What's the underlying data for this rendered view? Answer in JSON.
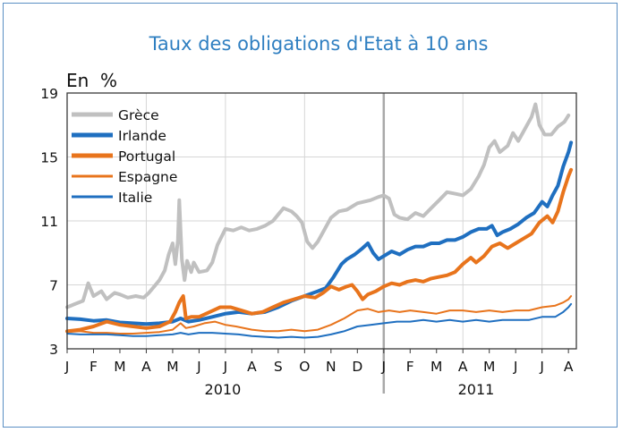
{
  "chart_data": {
    "type": "line",
    "title": "Taux des obligations d'Etat à 10 ans",
    "ylabel": "En  %",
    "ylim": [
      3,
      19
    ],
    "yticks": [
      3,
      7,
      11,
      15,
      19
    ],
    "x_month_labels": [
      "J",
      "F",
      "M",
      "A",
      "M",
      "J",
      "J",
      "A",
      "S",
      "O",
      "N",
      "D",
      "J",
      "F",
      "M",
      "A",
      "M",
      "J",
      "J",
      "A"
    ],
    "years": [
      "2010",
      "2011"
    ],
    "x_range_months": [
      0,
      19.3
    ],
    "year_divider_month": 12,
    "grid": true,
    "legend_position": "top-left",
    "series": [
      {
        "name": "Grèce",
        "color": "#c0c0c0",
        "width": 4,
        "points": [
          [
            0,
            5.6
          ],
          [
            0.3,
            5.8
          ],
          [
            0.6,
            6.0
          ],
          [
            0.8,
            7.1
          ],
          [
            1.0,
            6.3
          ],
          [
            1.3,
            6.6
          ],
          [
            1.5,
            6.1
          ],
          [
            1.8,
            6.5
          ],
          [
            2.0,
            6.4
          ],
          [
            2.3,
            6.2
          ],
          [
            2.6,
            6.3
          ],
          [
            2.9,
            6.2
          ],
          [
            3.1,
            6.5
          ],
          [
            3.3,
            6.9
          ],
          [
            3.5,
            7.3
          ],
          [
            3.7,
            7.9
          ],
          [
            3.85,
            8.9
          ],
          [
            4.0,
            9.6
          ],
          [
            4.1,
            8.3
          ],
          [
            4.2,
            9.8
          ],
          [
            4.25,
            12.3
          ],
          [
            4.35,
            8.6
          ],
          [
            4.45,
            7.3
          ],
          [
            4.55,
            8.5
          ],
          [
            4.7,
            7.8
          ],
          [
            4.8,
            8.4
          ],
          [
            5.0,
            7.8
          ],
          [
            5.3,
            7.9
          ],
          [
            5.5,
            8.4
          ],
          [
            5.7,
            9.5
          ],
          [
            6.0,
            10.5
          ],
          [
            6.3,
            10.4
          ],
          [
            6.6,
            10.6
          ],
          [
            6.9,
            10.4
          ],
          [
            7.2,
            10.5
          ],
          [
            7.5,
            10.7
          ],
          [
            7.8,
            11.0
          ],
          [
            8.0,
            11.4
          ],
          [
            8.2,
            11.8
          ],
          [
            8.5,
            11.6
          ],
          [
            8.7,
            11.3
          ],
          [
            8.9,
            10.9
          ],
          [
            9.1,
            9.7
          ],
          [
            9.3,
            9.3
          ],
          [
            9.5,
            9.7
          ],
          [
            9.7,
            10.3
          ],
          [
            10.0,
            11.2
          ],
          [
            10.3,
            11.6
          ],
          [
            10.6,
            11.7
          ],
          [
            11.0,
            12.1
          ],
          [
            11.5,
            12.3
          ],
          [
            11.8,
            12.5
          ],
          [
            12.0,
            12.6
          ],
          [
            12.2,
            12.4
          ],
          [
            12.4,
            11.4
          ],
          [
            12.6,
            11.2
          ],
          [
            12.9,
            11.1
          ],
          [
            13.2,
            11.5
          ],
          [
            13.5,
            11.3
          ],
          [
            13.8,
            11.8
          ],
          [
            14.1,
            12.3
          ],
          [
            14.4,
            12.8
          ],
          [
            14.7,
            12.7
          ],
          [
            15.0,
            12.6
          ],
          [
            15.3,
            13.0
          ],
          [
            15.6,
            13.8
          ],
          [
            15.8,
            14.5
          ],
          [
            16.0,
            15.6
          ],
          [
            16.2,
            16.0
          ],
          [
            16.4,
            15.3
          ],
          [
            16.7,
            15.7
          ],
          [
            16.9,
            16.5
          ],
          [
            17.1,
            16.0
          ],
          [
            17.4,
            16.9
          ],
          [
            17.6,
            17.5
          ],
          [
            17.75,
            18.3
          ],
          [
            17.9,
            17.0
          ],
          [
            18.1,
            16.4
          ],
          [
            18.35,
            16.4
          ],
          [
            18.6,
            16.9
          ],
          [
            18.85,
            17.2
          ],
          [
            19.0,
            17.6
          ]
        ]
      },
      {
        "name": "Irlande",
        "color": "#1f6fc0",
        "width": 4,
        "points": [
          [
            0,
            4.9
          ],
          [
            0.5,
            4.85
          ],
          [
            1.0,
            4.75
          ],
          [
            1.5,
            4.8
          ],
          [
            2.0,
            4.65
          ],
          [
            2.5,
            4.6
          ],
          [
            3.0,
            4.55
          ],
          [
            3.5,
            4.6
          ],
          [
            4.0,
            4.7
          ],
          [
            4.3,
            4.9
          ],
          [
            4.6,
            4.7
          ],
          [
            5.0,
            4.8
          ],
          [
            5.5,
            5.0
          ],
          [
            6.0,
            5.2
          ],
          [
            6.5,
            5.3
          ],
          [
            7.0,
            5.2
          ],
          [
            7.5,
            5.3
          ],
          [
            8.0,
            5.6
          ],
          [
            8.5,
            6.0
          ],
          [
            9.0,
            6.3
          ],
          [
            9.5,
            6.6
          ],
          [
            9.8,
            6.8
          ],
          [
            10.1,
            7.5
          ],
          [
            10.4,
            8.3
          ],
          [
            10.6,
            8.6
          ],
          [
            10.9,
            8.9
          ],
          [
            11.2,
            9.3
          ],
          [
            11.4,
            9.6
          ],
          [
            11.6,
            9.0
          ],
          [
            11.8,
            8.6
          ],
          [
            12.0,
            8.8
          ],
          [
            12.3,
            9.1
          ],
          [
            12.6,
            8.9
          ],
          [
            12.9,
            9.2
          ],
          [
            13.2,
            9.4
          ],
          [
            13.5,
            9.4
          ],
          [
            13.8,
            9.6
          ],
          [
            14.1,
            9.6
          ],
          [
            14.4,
            9.8
          ],
          [
            14.7,
            9.8
          ],
          [
            15.0,
            10.0
          ],
          [
            15.3,
            10.3
          ],
          [
            15.6,
            10.5
          ],
          [
            15.9,
            10.5
          ],
          [
            16.1,
            10.7
          ],
          [
            16.3,
            10.1
          ],
          [
            16.5,
            10.3
          ],
          [
            16.8,
            10.5
          ],
          [
            17.1,
            10.8
          ],
          [
            17.4,
            11.2
          ],
          [
            17.7,
            11.5
          ],
          [
            18.0,
            12.2
          ],
          [
            18.2,
            11.9
          ],
          [
            18.4,
            12.6
          ],
          [
            18.6,
            13.2
          ],
          [
            18.8,
            14.4
          ],
          [
            19.0,
            15.3
          ],
          [
            19.1,
            15.9
          ]
        ]
      },
      {
        "name": "Portugal",
        "color": "#e8741c",
        "width": 4,
        "points": [
          [
            0,
            4.1
          ],
          [
            0.5,
            4.2
          ],
          [
            1.0,
            4.4
          ],
          [
            1.5,
            4.7
          ],
          [
            2.0,
            4.5
          ],
          [
            2.5,
            4.4
          ],
          [
            3.0,
            4.3
          ],
          [
            3.5,
            4.4
          ],
          [
            3.9,
            4.7
          ],
          [
            4.1,
            5.3
          ],
          [
            4.25,
            5.9
          ],
          [
            4.4,
            6.3
          ],
          [
            4.5,
            4.9
          ],
          [
            4.7,
            5.0
          ],
          [
            5.0,
            5.0
          ],
          [
            5.4,
            5.3
          ],
          [
            5.8,
            5.6
          ],
          [
            6.2,
            5.6
          ],
          [
            6.6,
            5.4
          ],
          [
            7.0,
            5.2
          ],
          [
            7.4,
            5.3
          ],
          [
            7.8,
            5.6
          ],
          [
            8.2,
            5.9
          ],
          [
            8.6,
            6.1
          ],
          [
            9.0,
            6.3
          ],
          [
            9.4,
            6.2
          ],
          [
            9.7,
            6.5
          ],
          [
            10.0,
            6.9
          ],
          [
            10.3,
            6.7
          ],
          [
            10.6,
            6.9
          ],
          [
            10.8,
            7.0
          ],
          [
            11.0,
            6.6
          ],
          [
            11.2,
            6.1
          ],
          [
            11.4,
            6.4
          ],
          [
            11.7,
            6.6
          ],
          [
            12.0,
            6.9
          ],
          [
            12.3,
            7.1
          ],
          [
            12.6,
            7.0
          ],
          [
            12.9,
            7.2
          ],
          [
            13.2,
            7.3
          ],
          [
            13.5,
            7.2
          ],
          [
            13.8,
            7.4
          ],
          [
            14.1,
            7.5
          ],
          [
            14.4,
            7.6
          ],
          [
            14.7,
            7.8
          ],
          [
            15.0,
            8.3
          ],
          [
            15.3,
            8.7
          ],
          [
            15.5,
            8.4
          ],
          [
            15.8,
            8.8
          ],
          [
            16.1,
            9.4
          ],
          [
            16.4,
            9.6
          ],
          [
            16.7,
            9.3
          ],
          [
            17.0,
            9.6
          ],
          [
            17.3,
            9.9
          ],
          [
            17.6,
            10.2
          ],
          [
            17.9,
            10.9
          ],
          [
            18.2,
            11.3
          ],
          [
            18.4,
            10.9
          ],
          [
            18.6,
            11.6
          ],
          [
            18.8,
            12.8
          ],
          [
            19.0,
            13.8
          ],
          [
            19.1,
            14.2
          ]
        ]
      },
      {
        "name": "Espagne",
        "color": "#e8741c",
        "width": 2,
        "points": [
          [
            0,
            4.05
          ],
          [
            0.5,
            4.1
          ],
          [
            1.0,
            4.0
          ],
          [
            1.5,
            4.0
          ],
          [
            2.0,
            3.95
          ],
          [
            2.5,
            3.95
          ],
          [
            3.0,
            4.0
          ],
          [
            3.5,
            4.05
          ],
          [
            4.0,
            4.2
          ],
          [
            4.3,
            4.6
          ],
          [
            4.5,
            4.3
          ],
          [
            4.8,
            4.4
          ],
          [
            5.2,
            4.6
          ],
          [
            5.6,
            4.7
          ],
          [
            6.0,
            4.5
          ],
          [
            6.4,
            4.4
          ],
          [
            7.0,
            4.2
          ],
          [
            7.5,
            4.1
          ],
          [
            8.0,
            4.1
          ],
          [
            8.5,
            4.2
          ],
          [
            9.0,
            4.1
          ],
          [
            9.5,
            4.2
          ],
          [
            10.0,
            4.5
          ],
          [
            10.5,
            4.9
          ],
          [
            11.0,
            5.4
          ],
          [
            11.4,
            5.5
          ],
          [
            11.8,
            5.3
          ],
          [
            12.2,
            5.4
          ],
          [
            12.6,
            5.3
          ],
          [
            13.0,
            5.4
          ],
          [
            13.5,
            5.3
          ],
          [
            14.0,
            5.2
          ],
          [
            14.5,
            5.4
          ],
          [
            15.0,
            5.4
          ],
          [
            15.5,
            5.3
          ],
          [
            16.0,
            5.4
          ],
          [
            16.5,
            5.3
          ],
          [
            17.0,
            5.4
          ],
          [
            17.5,
            5.4
          ],
          [
            18.0,
            5.6
          ],
          [
            18.5,
            5.7
          ],
          [
            18.8,
            5.9
          ],
          [
            19.0,
            6.1
          ],
          [
            19.1,
            6.3
          ]
        ]
      },
      {
        "name": "Italie",
        "color": "#1f6fc0",
        "width": 2,
        "points": [
          [
            0,
            3.95
          ],
          [
            0.5,
            3.9
          ],
          [
            1.0,
            3.9
          ],
          [
            1.5,
            3.9
          ],
          [
            2.0,
            3.85
          ],
          [
            2.5,
            3.8
          ],
          [
            3.0,
            3.8
          ],
          [
            3.5,
            3.85
          ],
          [
            4.0,
            3.9
          ],
          [
            4.3,
            4.0
          ],
          [
            4.6,
            3.9
          ],
          [
            5.0,
            4.0
          ],
          [
            5.5,
            4.0
          ],
          [
            6.0,
            3.95
          ],
          [
            6.5,
            3.9
          ],
          [
            7.0,
            3.8
          ],
          [
            7.5,
            3.75
          ],
          [
            8.0,
            3.7
          ],
          [
            8.5,
            3.75
          ],
          [
            9.0,
            3.7
          ],
          [
            9.5,
            3.75
          ],
          [
            10.0,
            3.9
          ],
          [
            10.5,
            4.1
          ],
          [
            11.0,
            4.4
          ],
          [
            11.5,
            4.5
          ],
          [
            12.0,
            4.6
          ],
          [
            12.5,
            4.7
          ],
          [
            13.0,
            4.7
          ],
          [
            13.5,
            4.8
          ],
          [
            14.0,
            4.7
          ],
          [
            14.5,
            4.8
          ],
          [
            15.0,
            4.7
          ],
          [
            15.5,
            4.8
          ],
          [
            16.0,
            4.7
          ],
          [
            16.5,
            4.8
          ],
          [
            17.0,
            4.8
          ],
          [
            17.5,
            4.8
          ],
          [
            18.0,
            5.0
          ],
          [
            18.5,
            5.0
          ],
          [
            18.8,
            5.3
          ],
          [
            19.0,
            5.6
          ],
          [
            19.1,
            5.8
          ]
        ]
      }
    ]
  }
}
